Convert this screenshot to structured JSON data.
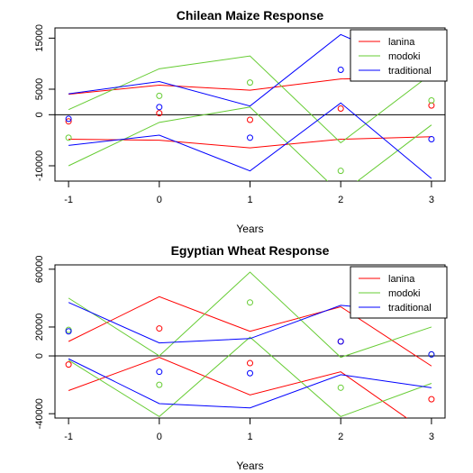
{
  "chart_data": [
    {
      "type": "line",
      "title": "Chilean Maize Response",
      "xlabel": "Years",
      "ylabel": "",
      "x": [
        -1,
        0,
        1,
        2,
        3
      ],
      "xlim": [
        -1.15,
        3.15
      ],
      "ylim": [
        -13000,
        17000
      ],
      "yticks": [
        -10000,
        0,
        5000,
        15000
      ],
      "ytick_labels": [
        "-10000",
        "0",
        "5000",
        "15000"
      ],
      "xtick_labels": [
        "-1",
        "0",
        "1",
        "2",
        "3"
      ],
      "zero_line": true,
      "legend_position": "top-right",
      "series": [
        {
          "name": "lanina",
          "color": "#ff0000",
          "points": [
            -1300,
            300,
            -1000,
            1200,
            1800
          ],
          "upper": [
            4000,
            5800,
            4800,
            7000,
            7500
          ],
          "lower": [
            -4800,
            -5000,
            -6500,
            -4800,
            -4300
          ]
        },
        {
          "name": "modoki",
          "color": "#66cc33",
          "points": [
            -4500,
            3700,
            6300,
            -11000,
            2800
          ],
          "upper": [
            1000,
            9000,
            11500,
            -5500,
            8000
          ],
          "lower": [
            -10000,
            -1500,
            1500,
            -15500,
            -2000
          ]
        },
        {
          "name": "traditional",
          "color": "#0000ff",
          "points": [
            -800,
            1500,
            -4500,
            8800,
            -4800
          ],
          "upper": [
            4100,
            6500,
            1700,
            15700,
            8000
          ],
          "lower": [
            -6000,
            -4000,
            -11000,
            2300,
            -12500
          ]
        }
      ]
    },
    {
      "type": "line",
      "title": "Egyptian Wheat Response",
      "xlabel": "Years",
      "ylabel": "",
      "x": [
        -1,
        0,
        1,
        2,
        3
      ],
      "xlim": [
        -1.15,
        3.15
      ],
      "ylim": [
        -43000,
        63000
      ],
      "yticks": [
        -40000,
        0,
        20000,
        60000
      ],
      "ytick_labels": [
        "-40000",
        "0",
        "20000",
        "60000"
      ],
      "xtick_labels": [
        "-1",
        "0",
        "1",
        "2",
        "3"
      ],
      "zero_line": true,
      "legend_position": "top-right",
      "series": [
        {
          "name": "lanina",
          "color": "#ff0000",
          "points": [
            -6000,
            19000,
            -5000,
            10000,
            -30000
          ],
          "upper": [
            10000,
            41000,
            17000,
            34000,
            -7000
          ],
          "lower": [
            -24000,
            -1000,
            -27000,
            -11000,
            -55000
          ]
        },
        {
          "name": "modoki",
          "color": "#66cc33",
          "points": [
            18000,
            -20000,
            37000,
            -22000,
            1000
          ],
          "upper": [
            40000,
            0,
            58000,
            -1000,
            20000
          ],
          "lower": [
            -3000,
            -42000,
            13000,
            -42000,
            -19000
          ]
        },
        {
          "name": "traditional",
          "color": "#0000ff",
          "points": [
            17000,
            -11000,
            -12000,
            10000,
            1000
          ],
          "upper": [
            37000,
            9000,
            12000,
            35000,
            29000
          ],
          "lower": [
            -2000,
            -33000,
            -36000,
            -13000,
            -22000
          ]
        }
      ]
    }
  ]
}
